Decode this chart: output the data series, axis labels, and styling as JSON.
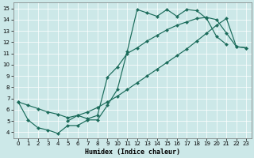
{
  "xlabel": "Humidex (Indice chaleur)",
  "bg_color": "#cce8e8",
  "line_color": "#1a6b5a",
  "grid_color": "#ffffff",
  "xlim": [
    -0.5,
    23.5
  ],
  "ylim": [
    3.5,
    15.5
  ],
  "xticks": [
    0,
    1,
    2,
    3,
    4,
    5,
    6,
    7,
    8,
    9,
    10,
    11,
    12,
    13,
    14,
    15,
    16,
    17,
    18,
    19,
    20,
    21,
    22,
    23
  ],
  "yticks": [
    4,
    5,
    6,
    7,
    8,
    9,
    10,
    11,
    12,
    13,
    14,
    15
  ],
  "curve1_x": [
    0,
    1,
    2,
    3,
    4,
    5,
    6,
    7,
    8,
    9,
    10,
    11,
    12,
    13,
    14,
    15,
    16,
    17,
    18,
    19,
    20,
    21
  ],
  "curve1_y": [
    6.7,
    5.1,
    4.4,
    4.2,
    3.9,
    4.6,
    4.6,
    5.1,
    5.1,
    6.4,
    7.8,
    11.2,
    14.9,
    14.6,
    14.3,
    14.9,
    14.3,
    14.9,
    14.8,
    14.1,
    12.5,
    11.8
  ],
  "curve2_x": [
    5,
    6,
    7,
    8,
    9,
    10,
    11,
    12,
    13,
    14,
    15,
    16,
    17,
    18,
    19,
    20,
    21,
    22,
    23
  ],
  "curve2_y": [
    5.0,
    5.5,
    5.2,
    5.5,
    8.9,
    9.8,
    11.0,
    11.5,
    12.1,
    12.6,
    13.1,
    13.5,
    13.8,
    14.1,
    14.2,
    14.0,
    12.8,
    11.6,
    11.5
  ],
  "curve3_x": [
    0,
    1,
    2,
    3,
    4,
    5,
    6,
    7,
    8,
    9,
    10,
    11,
    12,
    13,
    14,
    15,
    16,
    17,
    18,
    19,
    20,
    21,
    22,
    23
  ],
  "curve3_y": [
    6.7,
    6.4,
    6.1,
    5.8,
    5.6,
    5.3,
    5.5,
    5.8,
    6.2,
    6.7,
    7.2,
    7.8,
    8.4,
    9.0,
    9.6,
    10.2,
    10.8,
    11.4,
    12.1,
    12.8,
    13.5,
    14.1,
    11.6,
    11.5
  ]
}
